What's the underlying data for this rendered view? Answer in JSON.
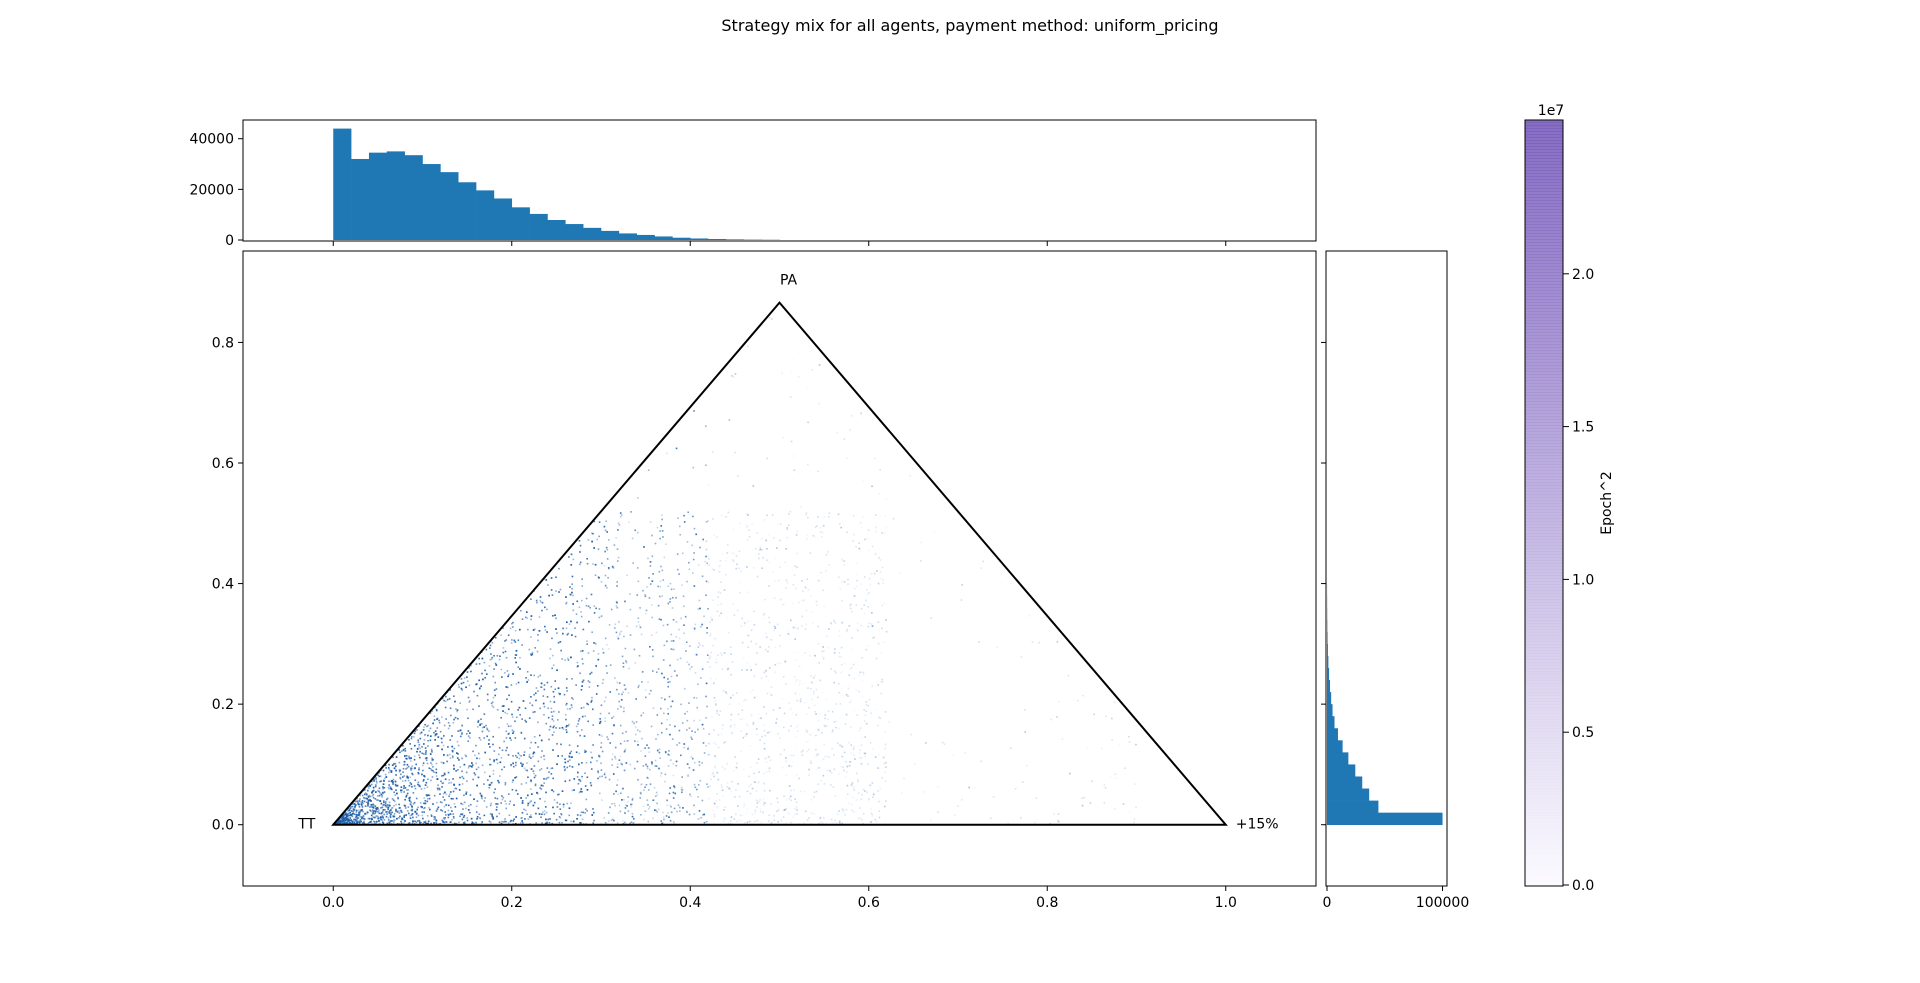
{
  "chart_data": [
    {
      "panel": "main",
      "type": "scatter",
      "title": "Strategy mix for all agents, payment method: uniform_pricing",
      "xlim": [
        -0.1,
        1.1
      ],
      "ylim": [
        -0.1,
        0.95
      ],
      "x_ticks": [
        0.0,
        0.2,
        0.4,
        0.6,
        0.8,
        1.0
      ],
      "y_ticks": [
        0.0,
        0.2,
        0.4,
        0.6,
        0.8
      ],
      "triangle": {
        "vertices": [
          {
            "label": "TT",
            "x": 0.0,
            "y": 0.0
          },
          {
            "label": "+15%",
            "x": 1.0,
            "y": 0.0
          },
          {
            "label": "PA",
            "x": 0.5,
            "y": 0.866
          }
        ]
      },
      "point_color": "#1f5fa8",
      "density_note_distribution": {
        "x_range": [
          0.0,
          0.65
        ],
        "y_range": [
          0.0,
          0.52
        ]
      },
      "grid": false
    },
    {
      "panel": "top-histogram",
      "type": "bar",
      "bin_width": 0.02,
      "bin_start": 0.0,
      "values": [
        44000,
        32000,
        34500,
        35000,
        33500,
        30000,
        26800,
        22800,
        19600,
        16400,
        12900,
        10300,
        7900,
        6300,
        4800,
        3600,
        2600,
        2000,
        1400,
        900,
        600,
        400,
        250,
        150,
        100
      ],
      "ylim": [
        0,
        47000
      ],
      "y_ticks": [
        0,
        20000,
        40000
      ],
      "color": "#1f77b4"
    },
    {
      "panel": "right-histogram",
      "type": "bar",
      "orientation": "horizontal",
      "bin_width": 0.02,
      "bin_start": 0.0,
      "values": [
        100000,
        44500,
        36500,
        30500,
        24500,
        18500,
        13500,
        9500,
        6500,
        4800,
        3600,
        2600,
        1800,
        1200,
        800,
        500,
        300,
        200,
        120,
        60
      ],
      "xlim": [
        0,
        103000
      ],
      "x_ticks": [
        0,
        100000
      ],
      "color": "#1f77b4"
    },
    {
      "panel": "colorbar",
      "type": "heatmap",
      "label": "Epoch^2",
      "scale_label": "1e7",
      "range": [
        0,
        2.5
      ],
      "ticks": [
        "0.0",
        "0.5",
        "1.0",
        "1.5",
        "2.0"
      ],
      "color_low": "#fbfaff",
      "color_high": "#7b5fbd"
    }
  ]
}
